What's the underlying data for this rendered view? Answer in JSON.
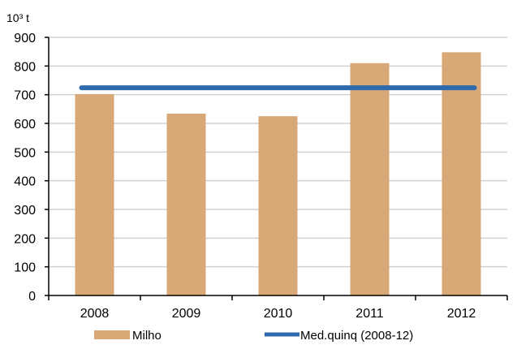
{
  "chart_data": {
    "type": "bar",
    "title": "",
    "unit_label": "10³ t",
    "categories": [
      "2008",
      "2009",
      "2010",
      "2011",
      "2012"
    ],
    "series": [
      {
        "name": "Milho",
        "type": "bar",
        "values": [
          702,
          634,
          625,
          810,
          848
        ]
      },
      {
        "name": "Med.quinq (2008-12)",
        "type": "line",
        "values": [
          724,
          724,
          724,
          724,
          724
        ]
      }
    ],
    "ylim": [
      0,
      900
    ],
    "yticks": [
      0,
      100,
      200,
      300,
      400,
      500,
      600,
      700,
      800,
      900
    ],
    "grid": true,
    "legend_position": "bottom"
  },
  "colors": {
    "bar": "#d9a877",
    "line": "#2e6aad",
    "grid": "#d0d0d0",
    "axis": "#000000",
    "title": "#7ab648"
  }
}
